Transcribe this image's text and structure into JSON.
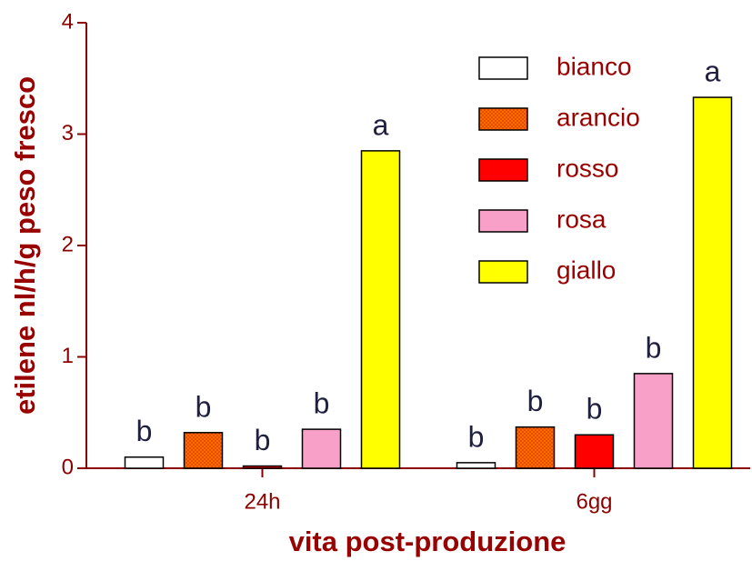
{
  "chart_data": {
    "type": "bar",
    "x_label": "vita post-produzione",
    "y_label": "etilene nl/h/g peso fresco",
    "categories": [
      "24h",
      "6gg"
    ],
    "series": [
      {
        "name": "bianco",
        "color": "#ffffff",
        "values": [
          0.1,
          0.05
        ],
        "labels": [
          "b",
          "b"
        ]
      },
      {
        "name": "arancio",
        "color": "#ff6a00",
        "pattern": "checker",
        "values": [
          0.32,
          0.37
        ],
        "labels": [
          "b",
          "b"
        ]
      },
      {
        "name": "rosso",
        "color": "#ff0000",
        "values": [
          0.02,
          0.3
        ],
        "labels": [
          "b",
          "b"
        ]
      },
      {
        "name": "rosa",
        "color": "#f9a0c8",
        "values": [
          0.35,
          0.85
        ],
        "labels": [
          "b",
          "b"
        ]
      },
      {
        "name": "giallo",
        "color": "#ffff00",
        "values": [
          2.85,
          3.33
        ],
        "labels": [
          "a",
          "a"
        ]
      }
    ],
    "ylim": [
      0,
      4
    ],
    "yticks": [
      0,
      1,
      2,
      3,
      4
    ],
    "legend": "upper right"
  }
}
